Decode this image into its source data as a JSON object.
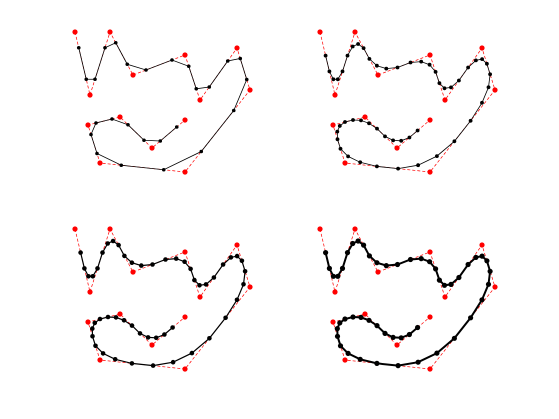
{
  "chart_data": [
    {
      "type": "line",
      "xlim": [
        0,
        200
      ],
      "ylim": [
        160,
        0
      ],
      "series": [
        {
          "color": "#ff0000",
          "linestyle": "dashed",
          "x": [
            5,
            20,
            40,
            63,
            115,
            130,
            167,
            180,
            115,
            30,
            18,
            50,
            82,
            115
          ],
          "values": [
            7,
            70,
            7,
            50,
            30,
            75,
            23,
            65,
            147,
            138,
            100,
            92,
            123,
            95
          ]
        },
        {
          "color": "#000000",
          "linestyle": "solid",
          "x": [
            8.75,
            16.25,
            25,
            35,
            45.75,
            57.25,
            76,
            102,
            118.75,
            126.25,
            139.25,
            157.75,
            170.25,
            176.75,
            163.75,
            131.25,
            93.75,
            51.25,
            27,
            21,
            26,
            42,
            58,
            74,
            90.25,
            106.75
          ],
          "values": [
            22.75,
            54.25,
            54.25,
            22.75,
            17.75,
            39.25,
            45,
            35,
            41.25,
            63.75,
            62,
            36,
            33.5,
            54.5,
            85.5,
            126.5,
            144.75,
            140.25,
            128.5,
            109.5,
            98,
            94,
            99.75,
            115.25,
            116,
            102
          ]
        }
      ]
    },
    {
      "type": "line",
      "xlim": [
        0,
        200
      ],
      "ylim": [
        160,
        0
      ],
      "series": [
        {
          "color": "#ff0000",
          "linestyle": "dashed",
          "x": [
            5,
            20,
            40,
            63,
            115,
            130,
            167,
            180,
            115,
            30,
            18,
            50,
            82,
            115
          ],
          "values": [
            7,
            70,
            7,
            50,
            30,
            75,
            23,
            65,
            147,
            138,
            100,
            92,
            123,
            95
          ]
        },
        {
          "color": "#000000",
          "linestyle": "solid",
          "x": [
            10.6,
            14.4,
            18.4,
            22.8,
            27.5,
            32.5,
            37.7,
            43.1,
            48.6,
            54.4,
            61.9,
            71.3,
            82.5,
            95.5,
            106.2,
            114.6,
            120.6,
            124.4,
            129.5,
            136,
            143.9,
            153.1,
            160.9,
            167.1,
            171.9,
            175.1,
            173.5,
            167,
            155.6,
            139.4,
            121.9,
            103.1,
            83.1,
            61.9,
            45.2,
            33.1,
            25.5,
            22.5,
            22.3,
            24.8,
            30,
            38,
            46,
            54,
            62,
            70,
            78.1,
            86.2,
            94.4,
            102.6
          ],
          "values": [
            30.6,
            46.4,
            54.3,
            54.3,
            46.4,
            30.6,
            21.5,
            19,
            23.1,
            33.9,
            40.7,
            43.6,
            42.5,
            37.5,
            36.6,
            39.7,
            46.9,
            58.1,
            63.3,
            62.4,
            55.5,
            42.5,
            35.4,
            34.1,
            38.8,
            49.3,
            62.3,
            77.8,
            95.8,
            116.3,
            131.1,
            140.2,
            143.6,
            141.4,
            137.3,
            131.4,
            123.8,
            114.3,
            106.6,
            100.9,
            97,
            95,
            95.4,
            98.3,
            103.6,
            111.4,
            115.4,
            115.8,
            112.5,
            105.5
          ]
        }
      ]
    },
    {
      "type": "line",
      "xlim": [
        0,
        200
      ],
      "ylim": [
        160,
        0
      ],
      "series": [
        {
          "color": "#ff0000",
          "linestyle": "dashed",
          "x": [
            5,
            20,
            40,
            63,
            115,
            130,
            167,
            180,
            115,
            30,
            18,
            50,
            82,
            115
          ],
          "values": [
            7,
            70,
            7,
            50,
            30,
            75,
            23,
            65,
            147,
            138,
            100,
            92,
            123,
            95
          ]
        },
        {
          "color": "#000000",
          "linestyle": "solid",
          "x": [
            10.6,
            14.4,
            18.4,
            22.8,
            27.5,
            32.5,
            37.7,
            43.1,
            48.6,
            54.4,
            61.9,
            71.3,
            82.5,
            95.5,
            106.2,
            114.6,
            120.6,
            124.4,
            129.5,
            136,
            143.9,
            153.1,
            160.9,
            167.1,
            171.9,
            175.1,
            173.5,
            167,
            155.6,
            139.4,
            121.9,
            103.1,
            83.1,
            61.9,
            45.2,
            33.1,
            25.5,
            22.5,
            22.3,
            24.8,
            30,
            38,
            46,
            54,
            62,
            70,
            78.1,
            86.2,
            94.4,
            102.6
          ],
          "values": [
            30.6,
            46.4,
            54.3,
            54.3,
            46.4,
            30.6,
            21.5,
            19,
            23.1,
            33.9,
            40.7,
            43.6,
            42.5,
            37.5,
            36.6,
            39.7,
            46.9,
            58.1,
            63.3,
            62.4,
            55.5,
            42.5,
            35.4,
            34.1,
            38.8,
            49.3,
            62.3,
            77.8,
            95.8,
            116.3,
            131.1,
            140.2,
            143.6,
            141.4,
            137.3,
            131.4,
            123.8,
            114.3,
            106.6,
            100.9,
            97,
            95,
            95.4,
            98.3,
            103.6,
            111.4,
            115.4,
            115.8,
            112.5,
            105.5
          ]
        }
      ]
    },
    {
      "type": "line",
      "xlim": [
        0,
        200
      ],
      "ylim": [
        160,
        0
      ],
      "series": [
        {
          "color": "#ff0000",
          "linestyle": "dashed",
          "x": [
            5,
            20,
            40,
            63,
            115,
            130,
            167,
            180,
            115,
            30,
            18,
            50,
            82,
            115
          ],
          "values": [
            7,
            70,
            7,
            50,
            30,
            75,
            23,
            65,
            147,
            138,
            100,
            92,
            123,
            95
          ]
        },
        {
          "color": "#000000",
          "linestyle": "solid",
          "x": [
            10.6,
            14.4,
            18.4,
            22.8,
            27.5,
            32.5,
            37.7,
            43.1,
            48.6,
            54.4,
            61.9,
            71.3,
            82.5,
            95.5,
            106.2,
            114.6,
            120.6,
            124.4,
            129.5,
            136,
            143.9,
            153.1,
            160.9,
            167.1,
            171.9,
            175.1,
            173.5,
            167,
            155.6,
            139.4,
            121.9,
            103.1,
            83.1,
            61.9,
            45.2,
            33.1,
            25.5,
            22.5,
            22.3,
            24.8,
            30,
            38,
            46,
            54,
            62,
            70,
            78.1,
            86.2,
            94.4,
            102.6
          ],
          "values": [
            30.6,
            46.4,
            54.3,
            54.3,
            46.4,
            30.6,
            21.5,
            19,
            23.1,
            33.9,
            40.7,
            43.6,
            42.5,
            37.5,
            36.6,
            39.7,
            46.9,
            58.1,
            63.3,
            62.4,
            55.5,
            42.5,
            35.4,
            34.1,
            38.8,
            49.3,
            62.3,
            77.8,
            95.8,
            116.3,
            131.1,
            140.2,
            143.6,
            141.4,
            137.3,
            131.4,
            123.8,
            114.3,
            106.6,
            100.9,
            97,
            95,
            95.4,
            98.3,
            103.6,
            111.4,
            115.4,
            115.8,
            112.5,
            105.5
          ]
        }
      ]
    }
  ]
}
